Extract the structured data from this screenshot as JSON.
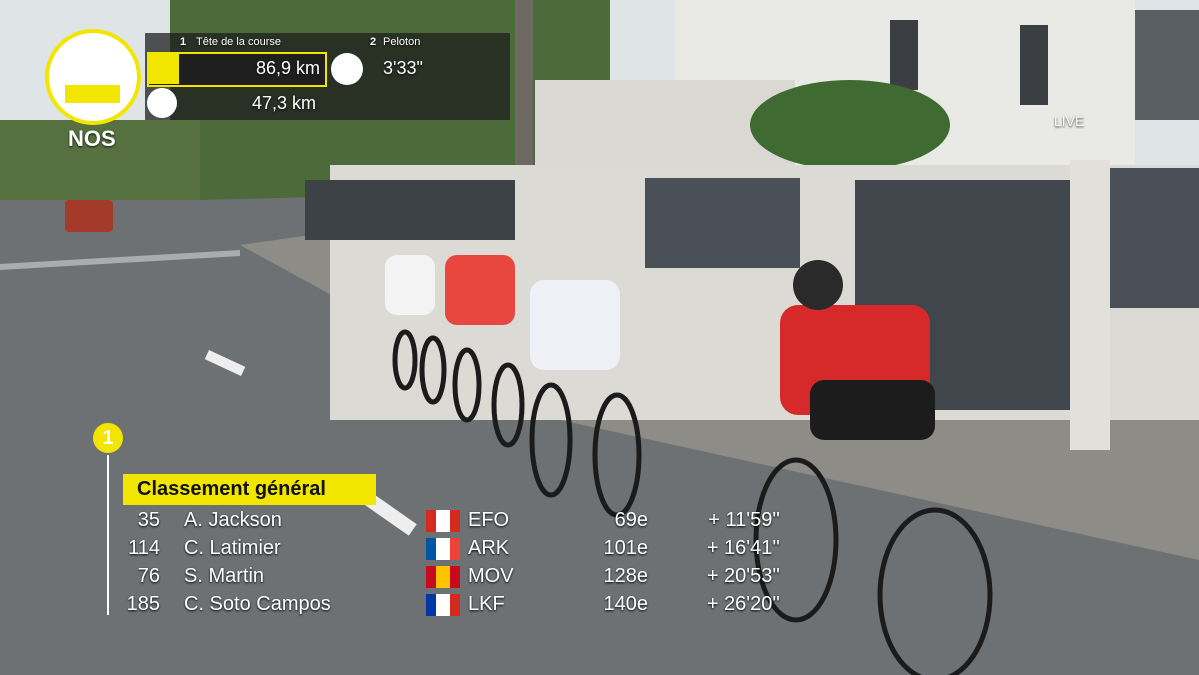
{
  "header": {
    "logo": "NOS",
    "live": "LIVE",
    "race": {
      "leader": {
        "position": "1",
        "label": "Tête de la course",
        "distance": "86,9 km"
      },
      "remaining": "47,3 km",
      "peloton": {
        "position": "2",
        "label": "Peloton",
        "gap": "3'33\""
      }
    }
  },
  "standings": {
    "stage_marker": "1",
    "title": "Classement général",
    "rows": [
      [
        "35",
        "A. Jackson",
        "EFO",
        "69e",
        "+ 11'59''"
      ],
      [
        "114",
        "C. Latimier",
        "ARK",
        "101e",
        "+ 16'41''"
      ],
      [
        "76",
        "S. Martin",
        "MOV",
        "128e",
        "+ 20'53''"
      ],
      [
        "185",
        "C. Soto Campos",
        "LKF",
        "140e",
        "+ 26'20''"
      ]
    ]
  }
}
